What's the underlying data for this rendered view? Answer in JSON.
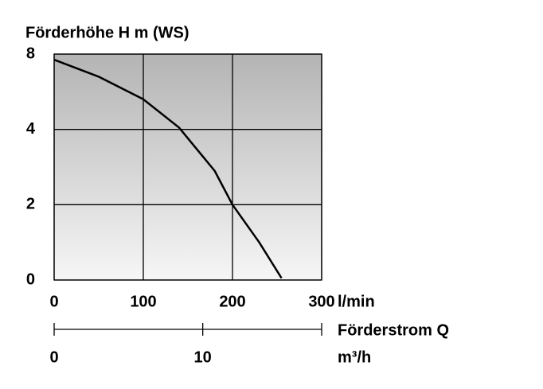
{
  "chart_data": {
    "type": "line",
    "title": "Förderhöhe H m (WS)",
    "x_unit": "l/min",
    "x2_label": "Förderstrom Q",
    "x2_unit": "m³/h",
    "x": [
      0,
      50,
      100,
      140,
      180,
      200,
      230,
      255
    ],
    "series": [
      {
        "color": "#000000",
        "values": [
          7.7,
          6.8,
          5.6,
          4.1,
          2.9,
          2.0,
          1.0,
          0.05
        ]
      }
    ],
    "xlim": [
      0,
      300
    ],
    "xticks": [
      0,
      100,
      200,
      300
    ],
    "ylim": [
      0,
      8
    ],
    "yticks": [
      0,
      2,
      4,
      8
    ],
    "x2lim": [
      0,
      18
    ],
    "x2ticks": [
      0,
      10
    ],
    "grid": true
  }
}
